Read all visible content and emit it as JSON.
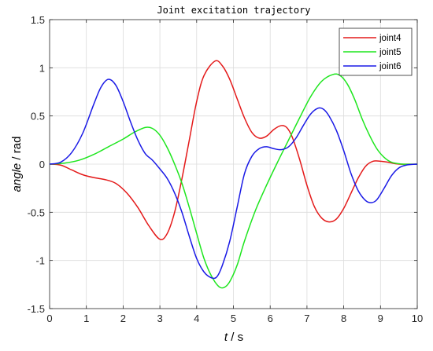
{
  "chart_data": {
    "type": "line",
    "title": "Joint excitation trajectory",
    "xlabel_italic": "t",
    "xlabel_unit": " / s",
    "ylabel_italic": "angle",
    "ylabel_unit": " / rad",
    "xlim": [
      0,
      10
    ],
    "ylim": [
      -1.5,
      1.5
    ],
    "xticks": [
      0,
      1,
      2,
      3,
      4,
      5,
      6,
      7,
      8,
      9,
      10
    ],
    "yticks": [
      -1.5,
      -1,
      -0.5,
      0,
      0.5,
      1,
      1.5
    ],
    "xtick_labels": [
      "0",
      "1",
      "2",
      "3",
      "4",
      "5",
      "6",
      "7",
      "8",
      "9",
      "10"
    ],
    "ytick_labels": [
      "-1.5",
      "-1",
      "-0.5",
      "0",
      "0.5",
      "1",
      "1.5"
    ],
    "grid": true,
    "legend_position": "top-right",
    "series": [
      {
        "name": "joint4",
        "color": "#e41a1a",
        "points": [
          [
            0,
            0
          ],
          [
            0.3,
            -0.01
          ],
          [
            0.6,
            -0.06
          ],
          [
            0.9,
            -0.11
          ],
          [
            1.2,
            -0.14
          ],
          [
            1.5,
            -0.16
          ],
          [
            1.8,
            -0.2
          ],
          [
            2.1,
            -0.3
          ],
          [
            2.4,
            -0.45
          ],
          [
            2.7,
            -0.64
          ],
          [
            3.0,
            -0.78
          ],
          [
            3.2,
            -0.72
          ],
          [
            3.4,
            -0.5
          ],
          [
            3.6,
            -0.15
          ],
          [
            3.8,
            0.25
          ],
          [
            4.0,
            0.65
          ],
          [
            4.2,
            0.92
          ],
          [
            4.5,
            1.07
          ],
          [
            4.7,
            1.02
          ],
          [
            4.9,
            0.88
          ],
          [
            5.1,
            0.68
          ],
          [
            5.3,
            0.48
          ],
          [
            5.5,
            0.33
          ],
          [
            5.7,
            0.27
          ],
          [
            5.9,
            0.29
          ],
          [
            6.1,
            0.36
          ],
          [
            6.3,
            0.4
          ],
          [
            6.45,
            0.38
          ],
          [
            6.6,
            0.28
          ],
          [
            6.8,
            0.05
          ],
          [
            7.0,
            -0.22
          ],
          [
            7.2,
            -0.44
          ],
          [
            7.4,
            -0.56
          ],
          [
            7.6,
            -0.6
          ],
          [
            7.8,
            -0.57
          ],
          [
            8.0,
            -0.46
          ],
          [
            8.2,
            -0.3
          ],
          [
            8.4,
            -0.14
          ],
          [
            8.6,
            -0.02
          ],
          [
            8.8,
            0.03
          ],
          [
            9.0,
            0.03
          ],
          [
            9.2,
            0.02
          ],
          [
            9.5,
            0
          ],
          [
            10,
            0
          ]
        ]
      },
      {
        "name": "joint5",
        "color": "#1ee61e",
        "points": [
          [
            0,
            0
          ],
          [
            0.4,
            0.01
          ],
          [
            0.8,
            0.04
          ],
          [
            1.2,
            0.1
          ],
          [
            1.6,
            0.18
          ],
          [
            2.0,
            0.26
          ],
          [
            2.3,
            0.33
          ],
          [
            2.6,
            0.38
          ],
          [
            2.8,
            0.37
          ],
          [
            3.0,
            0.3
          ],
          [
            3.2,
            0.17
          ],
          [
            3.4,
            0
          ],
          [
            3.6,
            -0.2
          ],
          [
            3.8,
            -0.45
          ],
          [
            4.0,
            -0.72
          ],
          [
            4.2,
            -0.98
          ],
          [
            4.4,
            -1.16
          ],
          [
            4.6,
            -1.27
          ],
          [
            4.75,
            -1.28
          ],
          [
            4.9,
            -1.22
          ],
          [
            5.1,
            -1.05
          ],
          [
            5.3,
            -0.8
          ],
          [
            5.6,
            -0.48
          ],
          [
            5.9,
            -0.22
          ],
          [
            6.2,
            0.02
          ],
          [
            6.5,
            0.25
          ],
          [
            6.8,
            0.48
          ],
          [
            7.1,
            0.7
          ],
          [
            7.4,
            0.86
          ],
          [
            7.7,
            0.93
          ],
          [
            7.9,
            0.92
          ],
          [
            8.1,
            0.83
          ],
          [
            8.3,
            0.67
          ],
          [
            8.5,
            0.47
          ],
          [
            8.7,
            0.3
          ],
          [
            8.9,
            0.16
          ],
          [
            9.1,
            0.07
          ],
          [
            9.3,
            0.02
          ],
          [
            9.6,
            0
          ],
          [
            10,
            0
          ]
        ]
      },
      {
        "name": "joint6",
        "color": "#1a1ae6",
        "points": [
          [
            0,
            0
          ],
          [
            0.3,
            0.02
          ],
          [
            0.6,
            0.12
          ],
          [
            0.9,
            0.32
          ],
          [
            1.2,
            0.62
          ],
          [
            1.4,
            0.8
          ],
          [
            1.6,
            0.88
          ],
          [
            1.8,
            0.82
          ],
          [
            2.0,
            0.65
          ],
          [
            2.2,
            0.44
          ],
          [
            2.4,
            0.25
          ],
          [
            2.6,
            0.11
          ],
          [
            2.8,
            0.04
          ],
          [
            3.0,
            -0.05
          ],
          [
            3.2,
            -0.15
          ],
          [
            3.4,
            -0.3
          ],
          [
            3.6,
            -0.5
          ],
          [
            3.8,
            -0.75
          ],
          [
            4.0,
            -0.98
          ],
          [
            4.2,
            -1.12
          ],
          [
            4.4,
            -1.18
          ],
          [
            4.55,
            -1.17
          ],
          [
            4.7,
            -1.05
          ],
          [
            4.9,
            -0.8
          ],
          [
            5.1,
            -0.45
          ],
          [
            5.3,
            -0.1
          ],
          [
            5.5,
            0.08
          ],
          [
            5.7,
            0.16
          ],
          [
            5.9,
            0.18
          ],
          [
            6.1,
            0.16
          ],
          [
            6.3,
            0.15
          ],
          [
            6.5,
            0.18
          ],
          [
            6.7,
            0.27
          ],
          [
            6.9,
            0.4
          ],
          [
            7.1,
            0.52
          ],
          [
            7.3,
            0.58
          ],
          [
            7.45,
            0.57
          ],
          [
            7.6,
            0.5
          ],
          [
            7.8,
            0.35
          ],
          [
            8.0,
            0.14
          ],
          [
            8.2,
            -0.1
          ],
          [
            8.4,
            -0.28
          ],
          [
            8.6,
            -0.38
          ],
          [
            8.75,
            -0.4
          ],
          [
            8.9,
            -0.37
          ],
          [
            9.1,
            -0.25
          ],
          [
            9.3,
            -0.12
          ],
          [
            9.5,
            -0.04
          ],
          [
            9.7,
            -0.01
          ],
          [
            10,
            0
          ]
        ]
      }
    ]
  }
}
